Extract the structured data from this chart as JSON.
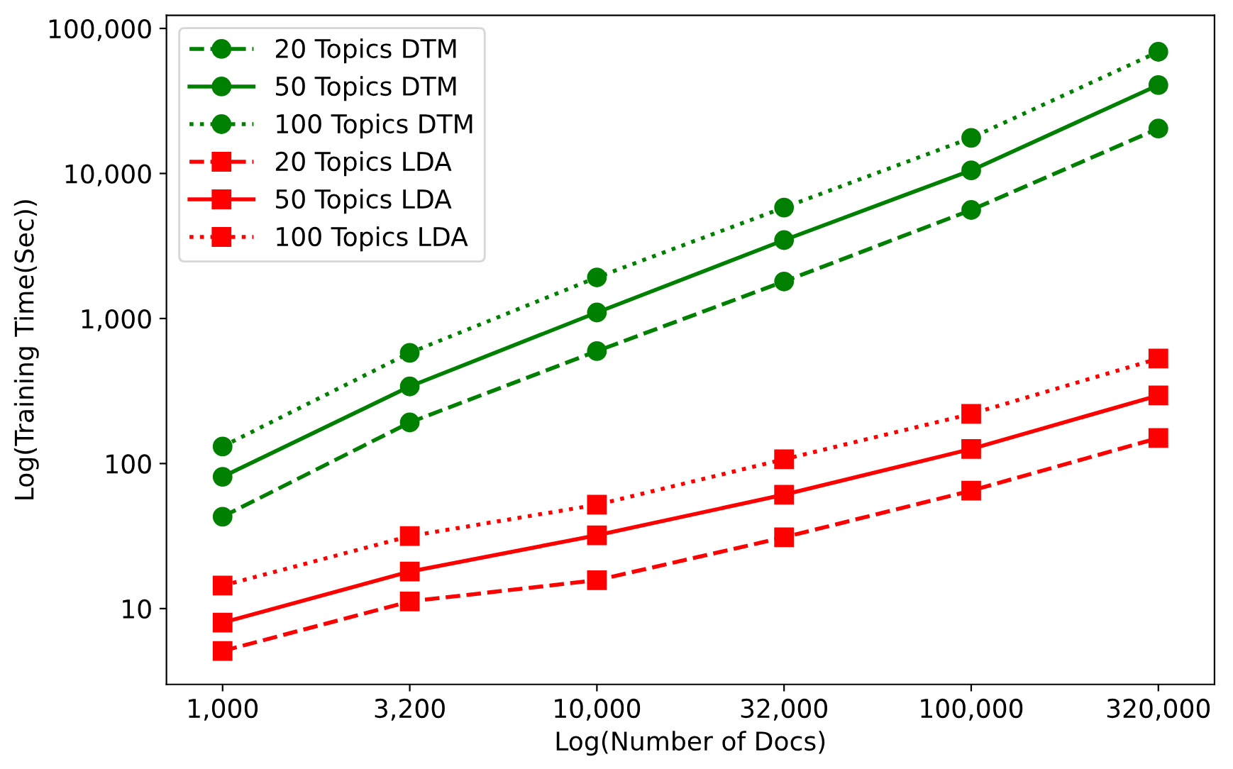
{
  "chart_data": {
    "type": "line",
    "xlabel": "Log(Number of Docs)",
    "ylabel": "Log(Training Time(Sec))",
    "categories": [
      "1,000",
      "3,200",
      "10,000",
      "32,000",
      "100,000",
      "320,000"
    ],
    "log": "y",
    "ylim": [
      3,
      123000
    ],
    "yticks": [
      {
        "value": 10,
        "label": "10"
      },
      {
        "value": 100,
        "label": "100"
      },
      {
        "value": 1000,
        "label": "1,000"
      },
      {
        "value": 10000,
        "label": "10,000"
      },
      {
        "value": 100000,
        "label": "100,000"
      }
    ],
    "grid": false,
    "legend": "top left",
    "series": [
      {
        "name": "20 Topics DTM",
        "color": "#008000",
        "marker": "circle",
        "line_style": "dashed",
        "values": [
          43,
          192,
          596,
          1800,
          5600,
          20400
        ]
      },
      {
        "name": "50 Topics DTM",
        "color": "#008000",
        "marker": "circle",
        "line_style": "solid",
        "values": [
          81,
          340,
          1100,
          3470,
          10500,
          40700
        ]
      },
      {
        "name": "100 Topics DTM",
        "color": "#008000",
        "marker": "circle",
        "line_style": "dotted",
        "values": [
          131,
          580,
          1920,
          5820,
          17600,
          69000
        ]
      },
      {
        "name": "20 Topics LDA",
        "color": "#ff0000",
        "marker": "square",
        "line_style": "dashed",
        "values": [
          5.1,
          11.2,
          15.7,
          31,
          65,
          150
        ]
      },
      {
        "name": "50 Topics LDA",
        "color": "#ff0000",
        "marker": "square",
        "line_style": "solid",
        "values": [
          8,
          18,
          32,
          61,
          126,
          295
        ]
      },
      {
        "name": "100 Topics LDA",
        "color": "#ff0000",
        "marker": "square",
        "line_style": "dotted",
        "values": [
          14.4,
          31.6,
          52,
          107,
          220,
          530
        ]
      }
    ]
  }
}
